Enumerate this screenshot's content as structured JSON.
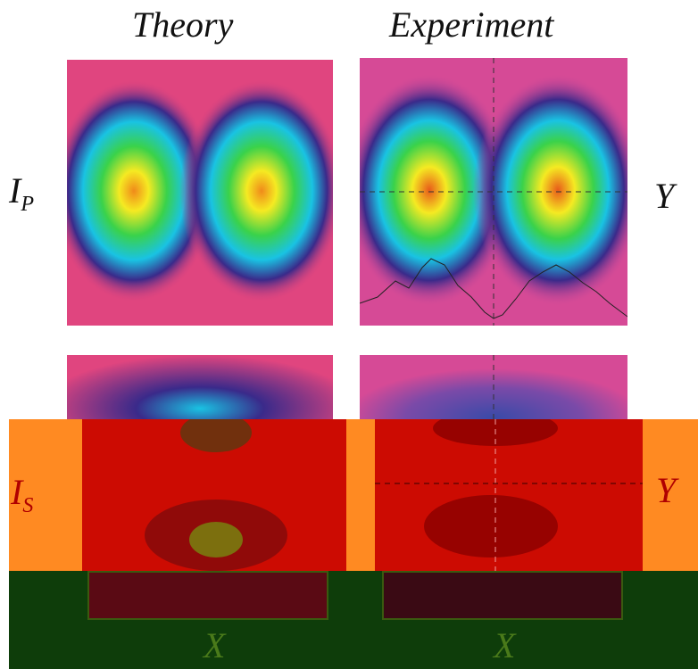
{
  "columns": {
    "theory": "Theory",
    "experiment": "Experiment"
  },
  "rows": {
    "top": {
      "label_main": "I",
      "label_sub": "P",
      "right_label": "Y"
    },
    "bottom": {
      "label_main": "I",
      "label_sub": "S",
      "right_label": "Y"
    }
  },
  "x_labels": {
    "left": "X",
    "right": "X"
  },
  "colors": {
    "magenta_bg": "#e0457f",
    "dark_blue": "#3a2a8a",
    "cyan": "#19c3e3",
    "green": "#3ad24a",
    "yellow": "#f5ea22",
    "orange_band": "#ff8a22",
    "red_overlay": "#c80000",
    "dark_green_band": "#0e3d0a"
  }
}
